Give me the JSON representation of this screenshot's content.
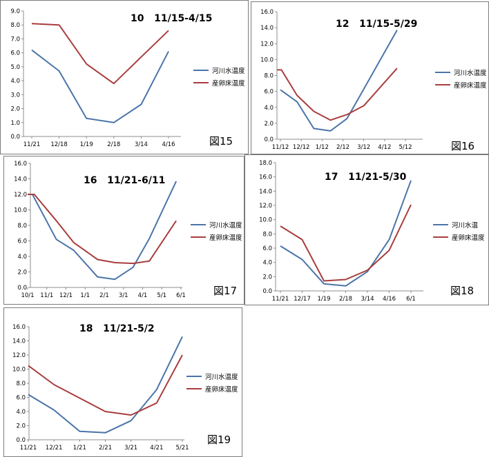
{
  "legend_labels": {
    "river_water_temp": "河川水温度",
    "river_water_temp_short": "河川水温",
    "spawning_bed_temp": "産卵床温度"
  },
  "colors": {
    "river": "#4a74a8",
    "spawning": "#a83c3c"
  },
  "panels": {
    "p15": {
      "title": "10   11/15-4/15",
      "figure_label": "図15"
    },
    "p16": {
      "title": "12   11/15-5/29",
      "figure_label": "図16"
    },
    "p17": {
      "title": "16   11/21-6/11",
      "figure_label": "図17"
    },
    "p18": {
      "title": "17   11/21-5/30",
      "figure_label": "図18"
    },
    "p19": {
      "title": "18   11/21-5/2",
      "figure_label": "図19"
    }
  },
  "chart_data": [
    {
      "id": "p15",
      "type": "line",
      "title": "10   11/15-4/15",
      "categories": [
        "11/21",
        "12/18",
        "1/19",
        "2/18",
        "3/14",
        "4/16"
      ],
      "ylim": [
        0,
        9
      ],
      "ystep": 1,
      "series": [
        {
          "name": "河川水温度",
          "values": [
            6.2,
            4.7,
            1.3,
            1.0,
            2.3,
            6.1
          ]
        },
        {
          "name": "産卵床温度",
          "values": [
            8.1,
            8.0,
            5.2,
            3.8,
            5.7,
            7.6
          ]
        }
      ]
    },
    {
      "id": "p16",
      "type": "line",
      "title": "12   11/15-5/29",
      "categories": [
        "11/12",
        "12/12",
        "1/12",
        "2/12",
        "3/12",
        "4/12",
        "5/12"
      ],
      "ylim": [
        0,
        16
      ],
      "ystep": 2,
      "series": [
        {
          "name": "河川水温度",
          "points": [
            [
              0,
              6.2
            ],
            [
              0.8,
              4.7
            ],
            [
              1.6,
              1.35
            ],
            [
              2.4,
              1.05
            ],
            [
              3.2,
              2.6
            ],
            [
              4.0,
              6.3
            ],
            [
              5.6,
              13.7
            ]
          ]
        },
        {
          "name": "産卵床温度",
          "points": [
            [
              -0.15,
              8.7
            ],
            [
              0.05,
              8.7
            ],
            [
              0.8,
              5.5
            ],
            [
              1.6,
              3.5
            ],
            [
              2.4,
              2.4
            ],
            [
              3.2,
              3.1
            ],
            [
              4.0,
              4.2
            ],
            [
              5.6,
              8.9
            ]
          ]
        }
      ]
    },
    {
      "id": "p17",
      "type": "line",
      "title": "16   11/21-6/11",
      "categories": [
        "10/1",
        "11/1",
        "12/1",
        "1/1",
        "2/1",
        "3/1",
        "4/1",
        "5/1",
        "6/1"
      ],
      "ylim": [
        0,
        16
      ],
      "ystep": 2,
      "series": [
        {
          "name": "河川水温度",
          "points": [
            [
              0.25,
              12.0
            ],
            [
              1.5,
              6.2
            ],
            [
              2.4,
              4.8
            ],
            [
              3.65,
              1.35
            ],
            [
              4.55,
              1.05
            ],
            [
              5.5,
              2.6
            ],
            [
              6.35,
              6.3
            ],
            [
              7.75,
              13.7
            ]
          ]
        },
        {
          "name": "産卵床温度",
          "points": [
            [
              0.0,
              12.0
            ],
            [
              0.35,
              12.0
            ],
            [
              1.5,
              8.6
            ],
            [
              2.4,
              5.8
            ],
            [
              3.65,
              3.6
            ],
            [
              4.55,
              3.2
            ],
            [
              5.5,
              3.1
            ],
            [
              6.35,
              3.4
            ],
            [
              7.75,
              8.6
            ]
          ]
        }
      ]
    },
    {
      "id": "p18",
      "type": "line",
      "title": "17   11/21-5/30",
      "categories": [
        "11/21",
        "12/17",
        "1/19",
        "2/18",
        "3/14",
        "4/16",
        "6/1"
      ],
      "ylim": [
        0,
        18
      ],
      "ystep": 2,
      "series": [
        {
          "name": "河川水温",
          "values": [
            6.3,
            4.4,
            1.0,
            0.7,
            2.7,
            7.2,
            15.5
          ]
        },
        {
          "name": "産卵床温度",
          "values": [
            9.1,
            7.2,
            1.4,
            1.6,
            2.9,
            5.7,
            12.1
          ]
        }
      ]
    },
    {
      "id": "p19",
      "type": "line",
      "title": "18   11/21-5/2",
      "categories": [
        "11/21",
        "12/21",
        "1/21",
        "2/21",
        "3/21",
        "4/21",
        "5/21"
      ],
      "ylim": [
        0,
        16
      ],
      "ystep": 2,
      "series": [
        {
          "name": "河川水温度",
          "values": [
            6.4,
            4.2,
            1.2,
            1.0,
            2.7,
            7.1,
            14.6
          ]
        },
        {
          "name": "産卵床温度",
          "values": [
            10.5,
            7.8,
            5.9,
            4.0,
            3.5,
            5.2,
            12.0
          ]
        }
      ]
    }
  ]
}
